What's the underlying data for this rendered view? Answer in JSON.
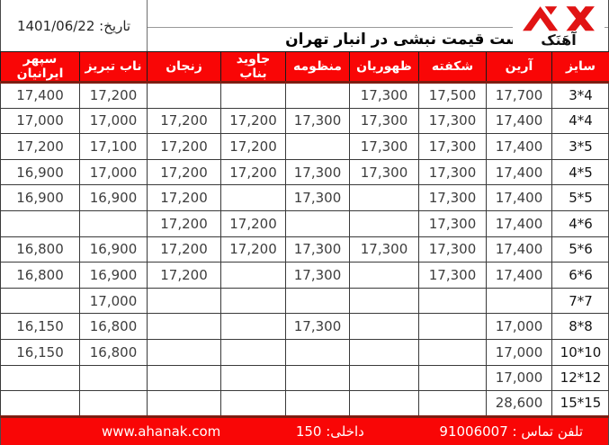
{
  "meta": {
    "date_text": "تاریخ: 1401/06/22"
  },
  "header": {
    "title": "لیست قیمت نبشی در انبار تهران",
    "logo_text": "آهَنَک"
  },
  "colors": {
    "header_red": "#f90606",
    "divider_maroon": "#7c1e12",
    "logo_red": "#e11414",
    "header_text": "#ffffff"
  },
  "table": {
    "columns": [
      "سایز",
      "آرین",
      "شکفته",
      "ظهوریان",
      "منظومه",
      "جاوید بناب",
      "زنجان",
      "ناب تبریز",
      "سپهر ایرانیان"
    ],
    "rows": [
      {
        "size": "4*3",
        "values": [
          "17,700",
          "17,500",
          "17,300",
          "",
          "",
          "",
          "17,200",
          "17,400"
        ]
      },
      {
        "size": "4*4",
        "values": [
          "17,400",
          "17,300",
          "17,300",
          "17,300",
          "17,200",
          "17,200",
          "17,000",
          "17,000"
        ]
      },
      {
        "size": "5*3",
        "values": [
          "17,400",
          "17,300",
          "17,300",
          "",
          "17,200",
          "17,200",
          "17,100",
          "17,200"
        ]
      },
      {
        "size": "5*4",
        "values": [
          "17,400",
          "17,300",
          "17,300",
          "17,300",
          "17,200",
          "17,200",
          "17,000",
          "16,900"
        ]
      },
      {
        "size": "5*5",
        "values": [
          "17,400",
          "17,300",
          "",
          "17,300",
          "",
          "17,200",
          "16,900",
          "16,900"
        ]
      },
      {
        "size": "6*4",
        "values": [
          "17,400",
          "17,300",
          "",
          "",
          "17,200",
          "17,200",
          "",
          ""
        ]
      },
      {
        "size": "6*5",
        "values": [
          "17,400",
          "17,300",
          "17,300",
          "17,300",
          "17,200",
          "17,200",
          "16,900",
          "16,800"
        ]
      },
      {
        "size": "6*6",
        "values": [
          "17,400",
          "17,300",
          "",
          "17,300",
          "",
          "17,200",
          "16,900",
          "16,800"
        ]
      },
      {
        "size": "7*7",
        "values": [
          "",
          "",
          "",
          "",
          "",
          "",
          "17,000",
          ""
        ]
      },
      {
        "size": "8*8",
        "values": [
          "17,000",
          "",
          "",
          "17,300",
          "",
          "",
          "16,800",
          "16,150"
        ]
      },
      {
        "size": "10*10",
        "values": [
          "17,000",
          "",
          "",
          "",
          "",
          "",
          "16,800",
          "16,150"
        ]
      },
      {
        "size": "12*12",
        "values": [
          "17,000",
          "",
          "",
          "",
          "",
          "",
          "",
          ""
        ]
      },
      {
        "size": "15*15",
        "values": [
          "28,600",
          "",
          "",
          "",
          "",
          "",
          "",
          ""
        ]
      }
    ]
  },
  "footer": {
    "phone_text": "تلفن تماس : 91006007",
    "extension_text": "داخلی: 150",
    "website": "www.ahanak.com"
  }
}
